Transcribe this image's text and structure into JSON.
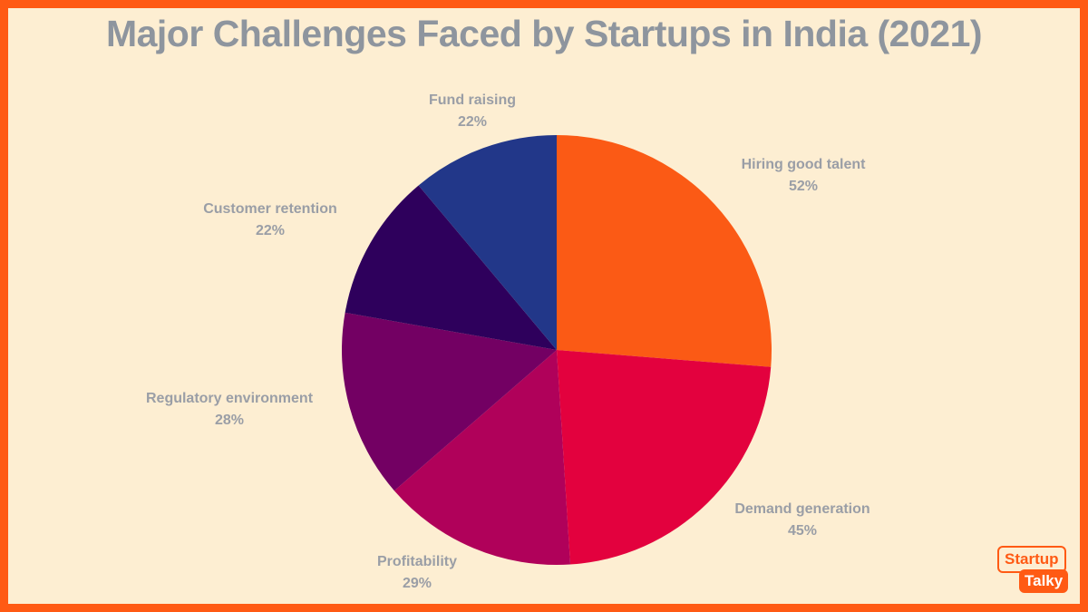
{
  "chart_data": {
    "type": "pie",
    "title": "Major Challenges Faced by Startups in India (2021)",
    "slices": [
      {
        "label": "Hiring good talent",
        "value": 52,
        "value_label": "52%",
        "color": "#fb5a15"
      },
      {
        "label": "Demand generation",
        "value": 45,
        "value_label": "45%",
        "color": "#e3013e"
      },
      {
        "label": "Profitability",
        "value": 29,
        "value_label": "29%",
        "color": "#b0015a"
      },
      {
        "label": "Regulatory environment",
        "value": 28,
        "value_label": "28%",
        "color": "#730063"
      },
      {
        "label": "Customer retention",
        "value": 22,
        "value_label": "22%",
        "color": "#2e005c"
      },
      {
        "label": "Fund raising",
        "value": 22,
        "value_label": "22%",
        "color": "#223789"
      }
    ],
    "start_angle": "12 o'clock",
    "direction": "clockwise",
    "legend": "none"
  },
  "logo": {
    "line1": "Startup",
    "line2": "Talky"
  },
  "colors": {
    "border": "#ff5a14",
    "background": "#fdeed2",
    "title": "#8e959e",
    "label": "#9a9ea6"
  }
}
